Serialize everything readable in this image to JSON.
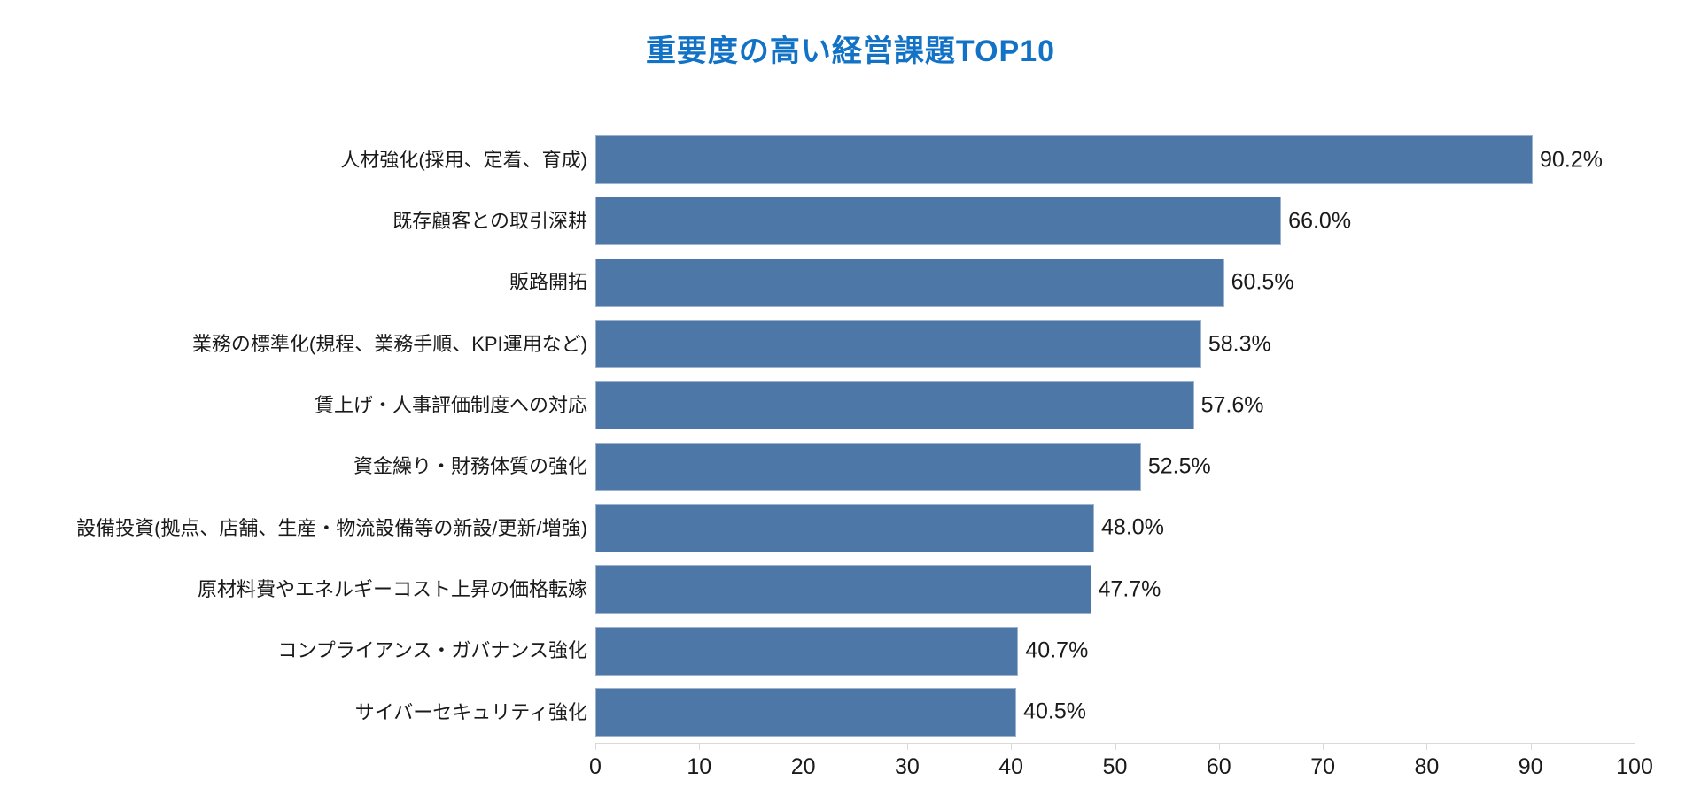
{
  "title": {
    "text": "重要度の高い経営課題TOP10",
    "color": "#1273c6"
  },
  "chart_data": {
    "type": "bar",
    "orientation": "horizontal",
    "title": "重要度の高い経営課題TOP10",
    "categories": [
      "人材強化(採用、定着、育成)",
      "既存顧客との取引深耕",
      "販路開拓",
      "業務の標準化(規程、業務手順、KPI運用など)",
      "賃上げ・人事評価制度への対応",
      "資金繰り・財務体質の強化",
      "設備投資(拠点、店舗、生産・物流設備等の新設/更新/増強)",
      "原材料費やエネルギーコスト上昇の価格転嫁",
      "コンプライアンス・ガバナンス強化",
      "サイバーセキュリティ強化"
    ],
    "values": [
      90.2,
      66.0,
      60.5,
      58.3,
      57.6,
      52.5,
      48.0,
      47.7,
      40.7,
      40.5
    ],
    "value_labels": [
      "90.2%",
      "66.0%",
      "60.5%",
      "58.3%",
      "57.6%",
      "52.5%",
      "48.0%",
      "47.7%",
      "40.7%",
      "40.5%"
    ],
    "xlabel": "",
    "ylabel": "",
    "xlim": [
      0,
      100
    ],
    "x_ticks": [
      0,
      10,
      20,
      30,
      40,
      50,
      60,
      70,
      80,
      90,
      100
    ],
    "grid": false,
    "legend": false,
    "bar_color": "#4d77a7",
    "bar_border_color": "#9cb2cf",
    "axis_line_color": "#d9d9d9",
    "text_color": "#1a1a1a"
  }
}
